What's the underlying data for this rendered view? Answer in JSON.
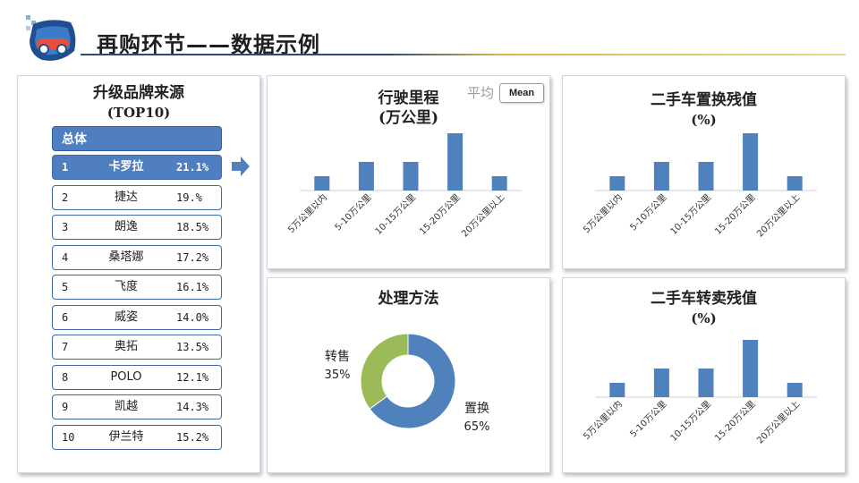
{
  "header": {
    "title": "再购环节——数据示例"
  },
  "brands": {
    "title": "升级品牌来源",
    "subtitle": "(TOP10)",
    "header_label": "总体",
    "items": [
      {
        "rank": "1",
        "name": "卡罗拉",
        "pct": "21.1%",
        "active": true
      },
      {
        "rank": "2",
        "name": "捷达",
        "pct": "19.%"
      },
      {
        "rank": "3",
        "name": "朗逸",
        "pct": "18.5%"
      },
      {
        "rank": "4",
        "name": "桑塔娜",
        "pct": "17.2%"
      },
      {
        "rank": "5",
        "name": "飞度",
        "pct": "16.1%"
      },
      {
        "rank": "6",
        "name": "威姿",
        "pct": "14.0%"
      },
      {
        "rank": "7",
        "name": "奥拓",
        "pct": "13.5%"
      },
      {
        "rank": "8",
        "name": "POLO",
        "pct": "12.1%"
      },
      {
        "rank": "9",
        "name": "凯越",
        "pct": "14.3%"
      },
      {
        "rank": "10",
        "name": "伊兰特",
        "pct": "15.2%"
      }
    ]
  },
  "controls": {
    "avg_label": "平均",
    "mean_button": "Mean"
  },
  "chart_data": [
    {
      "type": "bar",
      "title": "行驶里程",
      "subtitle": "(万公里)",
      "categories": [
        "5万公里以内",
        "5-10万公里",
        "10-15万公里",
        "15-20万公里",
        "20万公里以上"
      ],
      "values": [
        1,
        2,
        2,
        4,
        1
      ],
      "ylim": [
        0,
        4
      ],
      "grid": false,
      "color": "#4f81bd"
    },
    {
      "type": "bar",
      "title": "二手车置换残值",
      "subtitle": "(%)",
      "categories": [
        "5万公里以内",
        "5-10万公里",
        "10-15万公里",
        "15-20万公里",
        "20万公里以上"
      ],
      "values": [
        1,
        2,
        2,
        4,
        1
      ],
      "ylim": [
        0,
        4
      ],
      "grid": false,
      "color": "#4f81bd"
    },
    {
      "type": "pie",
      "title": "处理方法",
      "donut": true,
      "slices": [
        {
          "label": "置换",
          "pct_label": "65%",
          "value": 65,
          "color": "#4f81bd"
        },
        {
          "label": "转售",
          "pct_label": "35%",
          "value": 35,
          "color": "#9bbb59"
        }
      ]
    },
    {
      "type": "bar",
      "title": "二手车转卖残值",
      "subtitle": "(%)",
      "categories": [
        "5万公里以内",
        "5-10万公里",
        "10-15万公里",
        "15-20万公里",
        "20万公里以上"
      ],
      "values": [
        1,
        2,
        2,
        4,
        1
      ],
      "ylim": [
        0,
        4
      ],
      "grid": false,
      "color": "#4f81bd"
    }
  ]
}
